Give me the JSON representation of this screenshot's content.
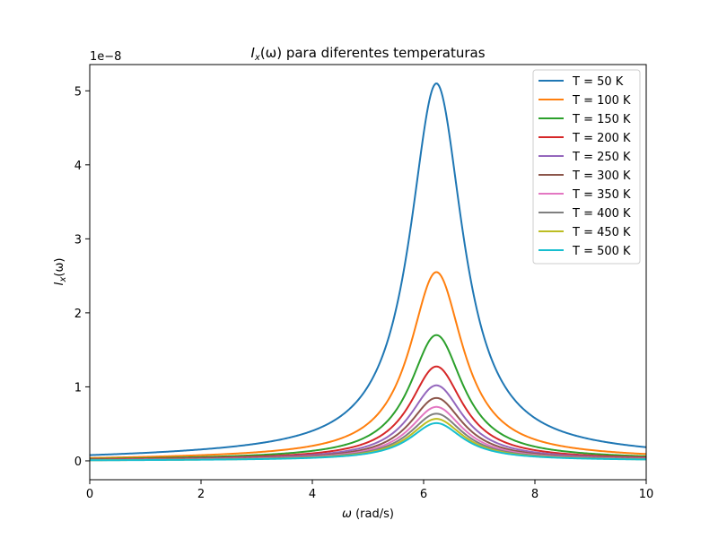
{
  "chart_data": {
    "type": "line",
    "title_math": "I",
    "title_sub": "x",
    "title_arg": "(ω)",
    "title_rest": " para diferentes temperaturas",
    "xlabel_math": "ω",
    "xlabel_rest": " (rad/s)",
    "ylabel_math": "I",
    "ylabel_sub": "x",
    "ylabel_arg": "(ω)",
    "y_offset_label": "1e−8",
    "xlim": [
      0,
      10
    ],
    "ylim": [
      -0.255,
      5.355
    ],
    "x_ticks": [
      0,
      2,
      4,
      6,
      8,
      10
    ],
    "x_tick_labels": [
      "0",
      "2",
      "4",
      "6",
      "8",
      "10"
    ],
    "y_ticks": [
      0,
      1,
      2,
      3,
      4,
      5
    ],
    "y_tick_labels": [
      "0",
      "1",
      "2",
      "3",
      "4",
      "5"
    ],
    "y_scale_factor": "1e-8",
    "grid": false,
    "legend_position": "top-right",
    "peak_omega": 6.23,
    "series": [
      {
        "name": "T = 50 K",
        "color": "#1f77b4",
        "peak": 5.1
      },
      {
        "name": "T = 100 K",
        "color": "#ff7f0e",
        "peak": 2.55
      },
      {
        "name": "T = 150 K",
        "color": "#2ca02c",
        "peak": 1.7
      },
      {
        "name": "T = 200 K",
        "color": "#d62728",
        "peak": 1.275
      },
      {
        "name": "T = 250 K",
        "color": "#9467bd",
        "peak": 1.02
      },
      {
        "name": "T = 300 K",
        "color": "#8c564b",
        "peak": 0.85
      },
      {
        "name": "T = 350 K",
        "color": "#e377c2",
        "peak": 0.729
      },
      {
        "name": "T = 400 K",
        "color": "#7f7f7f",
        "peak": 0.6375
      },
      {
        "name": "T = 450 K",
        "color": "#bcbd22",
        "peak": 0.567
      },
      {
        "name": "T = 500 K",
        "color": "#17becf",
        "peak": 0.51
      }
    ]
  }
}
